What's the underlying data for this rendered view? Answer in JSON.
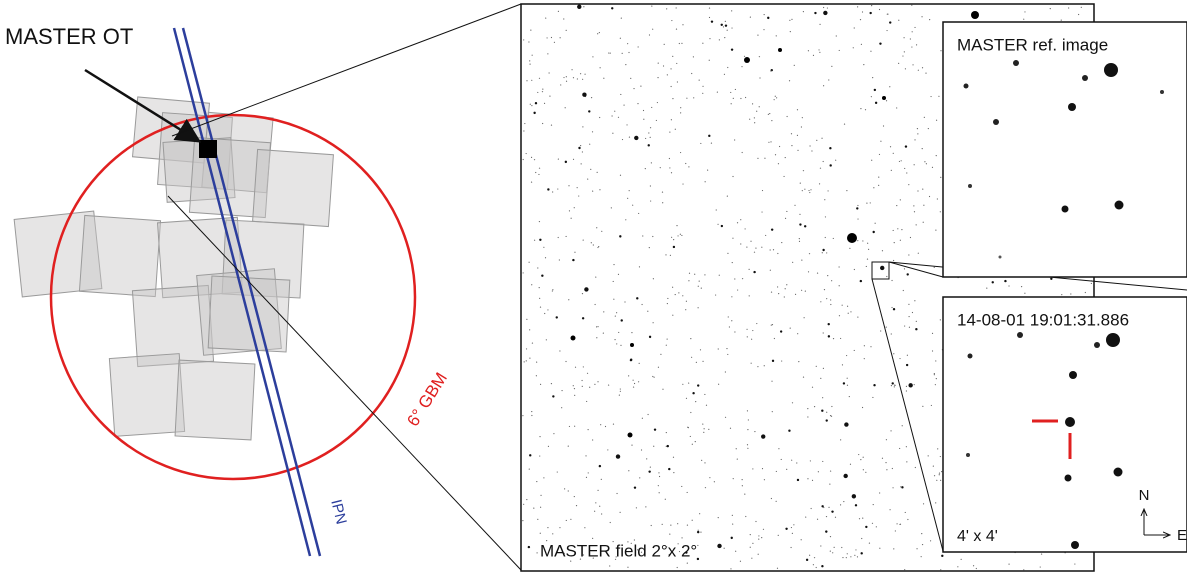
{
  "ot_label": "MASTER OT",
  "gbm_label": "6° GBM",
  "ipn_label": "IPN",
  "field_label": "MASTER field 2°x 2°",
  "ref_label": "MASTER ref. image",
  "time_label": "14-08-01 19:01:31.886",
  "scale_label": "4' x 4'",
  "north_label": "N",
  "east_label": "E"
}
